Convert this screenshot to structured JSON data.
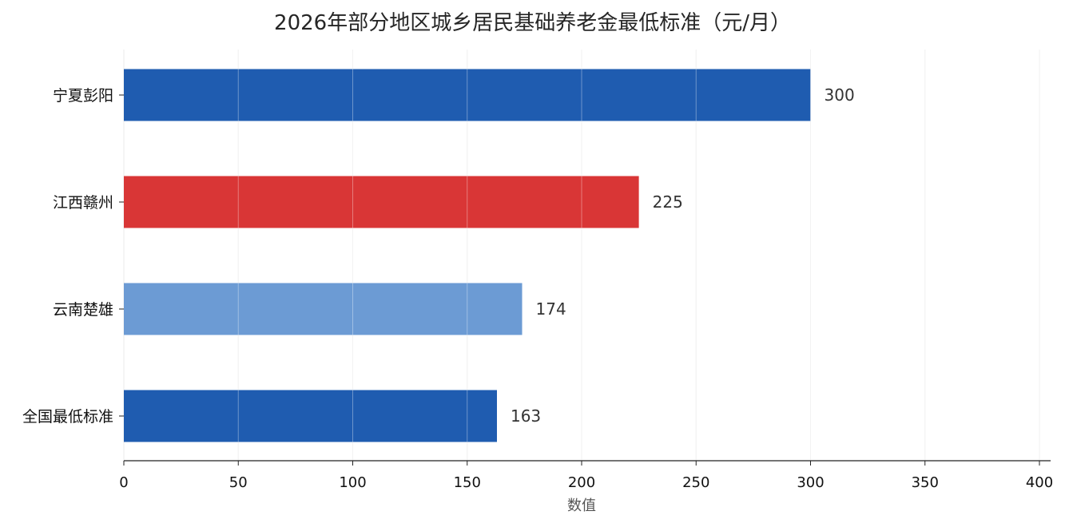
{
  "chart_data": {
    "type": "bar",
    "orientation": "horizontal",
    "title": "2026年部分地区城乡居民基础养老金最低标准（元/月）",
    "categories": [
      "宁夏彭阳",
      "江西赣州",
      "云南楚雄",
      "全国最低标准"
    ],
    "values": [
      300,
      225,
      174,
      163
    ],
    "colors": [
      "#1f5cb0",
      "#d93636",
      "#6c9bd4",
      "#1f5cb0"
    ],
    "xlabel": "数值",
    "ylabel": "",
    "xlim": [
      0,
      400
    ],
    "xticks": [
      0,
      50,
      100,
      150,
      200,
      250,
      300,
      350,
      400
    ],
    "grid": "vertical",
    "legend": "none"
  }
}
